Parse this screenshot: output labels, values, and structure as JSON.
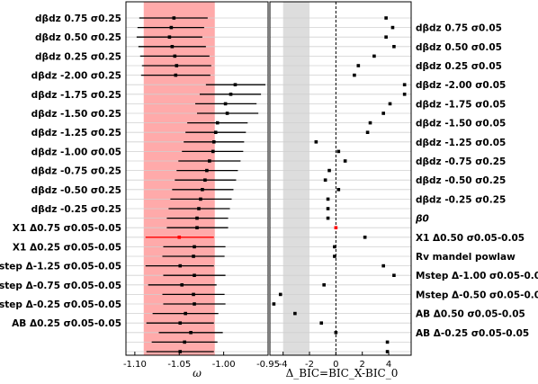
{
  "chart_data": [
    {
      "type": "scatter",
      "xlabel": "ω",
      "xlim": [
        -1.11,
        -0.95
      ],
      "xticks": [
        "-1.10",
        "-1.05",
        "-1.00",
        "-0.95"
      ],
      "shaded_band": [
        -1.09,
        -1.01
      ],
      "labels_left": [
        "dβdz 0.75 σ0.25",
        "dβdz 0.50 σ0.25",
        "dβdz 0.25 σ0.25",
        "dβdz -2.00 σ0.25",
        "dβdz -1.75 σ0.25",
        "dβdz -1.50 σ0.25",
        "dβdz -1.25 σ0.25",
        "dβdz -1.00 σ0.05",
        "dβdz -0.75 σ0.25",
        "dβdz -0.50 σ0.25",
        "dβdz -0.25 σ0.25",
        "X1 Δ0.75 σ0.05-0.05",
        "X1 Δ0.25 σ0.05-0.05",
        "Mstep Δ-1.25 σ0.05-0.05",
        "Mstep Δ-0.75 σ0.05-0.05",
        "Mstep Δ-0.25 σ0.05-0.05",
        "AB Δ0.25 σ0.05-0.05"
      ],
      "labels_right": [
        "dβdz 0.75 σ0.05",
        "dβdz 0.50 σ0.05",
        "dβdz 0.25 σ0.05",
        "dβdz -2.00 σ0.05",
        "dβdz -1.75 σ0.05",
        "dβdz -1.50 σ0.05",
        "dβdz -1.25 σ0.05",
        "dβdz -0.75 σ0.25",
        "dβdz -0.50 σ0.25",
        "dβdz -0.25 σ0.25",
        "β0",
        "X1 Δ0.50 σ0.05-0.05",
        "Rv mandel powlaw",
        "Mstep Δ-1.00 σ0.05-0.05",
        "Mstep Δ-0.50 σ0.05-0.05",
        "AB Δ0.50 σ0.05-0.05",
        "AB Δ-0.25 σ0.05-0.05"
      ],
      "points": [
        {
          "w": -1.056,
          "lo": -1.095,
          "hi": -1.018
        },
        {
          "w": -1.059,
          "lo": -1.097,
          "hi": -1.022
        },
        {
          "w": -1.061,
          "lo": -1.098,
          "hi": -1.024
        },
        {
          "w": -1.058,
          "lo": -1.096,
          "hi": -1.02
        },
        {
          "w": -1.055,
          "lo": -1.094,
          "hi": -1.016
        },
        {
          "w": -1.053,
          "lo": -1.092,
          "hi": -1.014
        },
        {
          "w": -1.054,
          "lo": -1.093,
          "hi": -1.015
        },
        {
          "w": -0.987,
          "lo": -1.02,
          "hi": -0.953
        },
        {
          "w": -0.992,
          "lo": -1.027,
          "hi": -0.958
        },
        {
          "w": -0.998,
          "lo": -1.032,
          "hi": -0.963
        },
        {
          "w": -0.996,
          "lo": -1.03,
          "hi": -0.961
        },
        {
          "w": -1.007,
          "lo": -1.041,
          "hi": -0.973
        },
        {
          "w": -1.009,
          "lo": -1.043,
          "hi": -0.975
        },
        {
          "w": -1.011,
          "lo": -1.045,
          "hi": -0.977
        },
        {
          "w": -1.012,
          "lo": -1.047,
          "hi": -0.978
        },
        {
          "w": -1.016,
          "lo": -1.051,
          "hi": -0.981
        },
        {
          "w": -1.019,
          "lo": -1.053,
          "hi": -0.984
        },
        {
          "w": -1.021,
          "lo": -1.055,
          "hi": -0.986
        },
        {
          "w": -1.024,
          "lo": -1.058,
          "hi": -0.989
        },
        {
          "w": -1.026,
          "lo": -1.06,
          "hi": -0.991
        },
        {
          "w": -1.028,
          "lo": -1.062,
          "hi": -0.993
        },
        {
          "w": -1.03,
          "lo": -1.064,
          "hi": -0.995
        },
        {
          "w": -1.03,
          "lo": -1.064,
          "hi": -0.995
        },
        {
          "w": -1.05,
          "lo": -1.088,
          "hi": -1.011,
          "highlight": true
        },
        {
          "w": -1.033,
          "lo": -1.068,
          "hi": -0.998
        },
        {
          "w": -1.034,
          "lo": -1.069,
          "hi": -0.999
        },
        {
          "w": -1.049,
          "lo": -1.088,
          "hi": -1.011
        },
        {
          "w": -1.033,
          "lo": -1.068,
          "hi": -0.998
        },
        {
          "w": -1.047,
          "lo": -1.085,
          "hi": -1.008
        },
        {
          "w": -1.034,
          "lo": -1.069,
          "hi": -0.999
        },
        {
          "w": -1.033,
          "lo": -1.068,
          "hi": -0.998
        },
        {
          "w": -1.043,
          "lo": -1.08,
          "hi": -1.006
        },
        {
          "w": -1.049,
          "lo": -1.087,
          "hi": -1.011
        },
        {
          "w": -1.037,
          "lo": -1.073,
          "hi": -1.001
        },
        {
          "w": -1.044,
          "lo": -1.081,
          "hi": -1.007
        },
        {
          "w": -1.049,
          "lo": -1.087,
          "hi": -1.011
        }
      ]
    },
    {
      "type": "scatter",
      "xlabel": "Δ_BIC=BIC_X-BIC_0",
      "xlim": [
        -5,
        5.7
      ],
      "xticks": [
        "-4",
        "-2",
        "0",
        "2",
        "4"
      ],
      "shaded_band": [
        -4,
        -2
      ],
      "vline": 0,
      "values": [
        3.8,
        4.3,
        3.8,
        4.4,
        2.9,
        1.7,
        1.4,
        5.2,
        5.2,
        4.1,
        3.6,
        2.6,
        2.4,
        -1.5,
        0.2,
        0.7,
        -0.5,
        -0.8,
        0.2,
        -0.6,
        -0.6,
        -0.6,
        0.0,
        2.2,
        -0.1,
        -0.1,
        3.6,
        4.4,
        -0.9,
        -4.2,
        -4.7,
        -3.1,
        -1.1,
        0.0,
        3.9,
        3.9
      ],
      "highlight_index": 22
    }
  ]
}
